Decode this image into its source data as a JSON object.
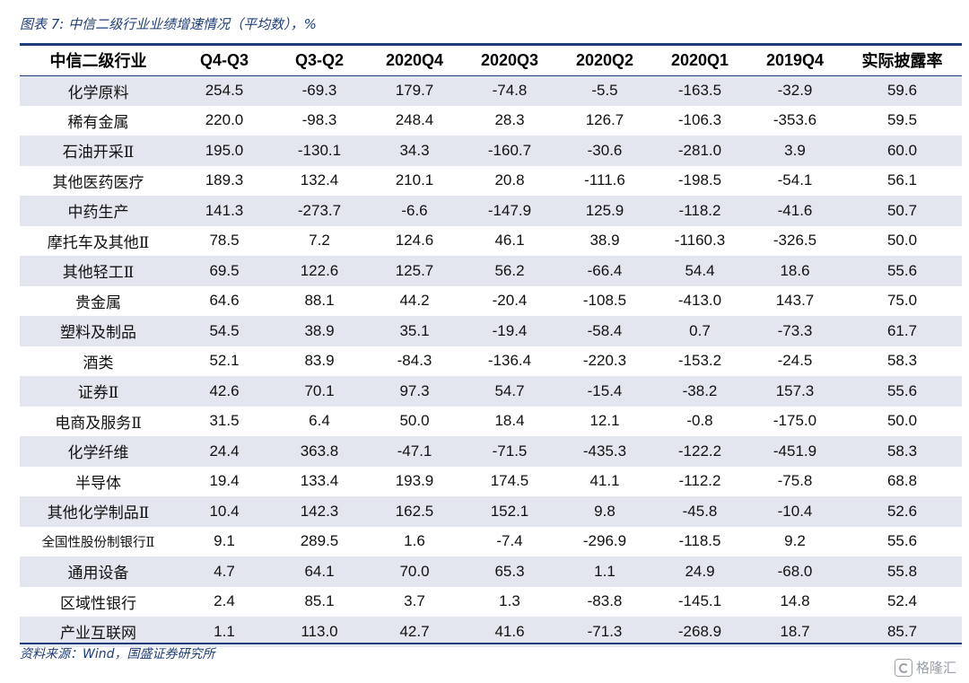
{
  "figure": {
    "title": "图表 7:  中信二级行业业绩增速情况（平均数），%",
    "source": "资料来源：Wind，国盛证券研究所",
    "watermark": "格隆汇",
    "accent_color": "#1f3d7a",
    "row_shade_color": "#e3e6ee"
  },
  "table": {
    "headers": [
      "中信二级行业",
      "Q4-Q3",
      "Q3-Q2",
      "2020Q4",
      "2020Q3",
      "2020Q2",
      "2020Q1",
      "2019Q4",
      "实际披露率"
    ],
    "rows": [
      [
        "化学原料",
        "254.5",
        "-69.3",
        "179.7",
        "-74.8",
        "-5.5",
        "-163.5",
        "-32.9",
        "59.6"
      ],
      [
        "稀有金属",
        "220.0",
        "-98.3",
        "248.4",
        "28.3",
        "126.7",
        "-106.3",
        "-353.6",
        "59.5"
      ],
      [
        "石油开采Ⅱ",
        "195.0",
        "-130.1",
        "34.3",
        "-160.7",
        "-30.6",
        "-281.0",
        "3.9",
        "60.0"
      ],
      [
        "其他医药医疗",
        "189.3",
        "132.4",
        "210.1",
        "20.8",
        "-111.6",
        "-198.5",
        "-54.1",
        "56.1"
      ],
      [
        "中药生产",
        "141.3",
        "-273.7",
        "-6.6",
        "-147.9",
        "125.9",
        "-118.2",
        "-41.6",
        "50.7"
      ],
      [
        "摩托车及其他Ⅱ",
        "78.5",
        "7.2",
        "124.6",
        "46.1",
        "38.9",
        "-1160.3",
        "-326.5",
        "50.0"
      ],
      [
        "其他轻工Ⅱ",
        "69.5",
        "122.6",
        "125.7",
        "56.2",
        "-66.4",
        "54.4",
        "18.6",
        "55.6"
      ],
      [
        "贵金属",
        "64.6",
        "88.1",
        "44.2",
        "-20.4",
        "-108.5",
        "-413.0",
        "143.7",
        "75.0"
      ],
      [
        "塑料及制品",
        "54.5",
        "38.9",
        "35.1",
        "-19.4",
        "-58.4",
        "0.7",
        "-73.3",
        "61.7"
      ],
      [
        "酒类",
        "52.1",
        "83.9",
        "-84.3",
        "-136.4",
        "-220.3",
        "-153.2",
        "-24.5",
        "58.3"
      ],
      [
        "证券Ⅱ",
        "42.6",
        "70.1",
        "97.3",
        "54.7",
        "-15.4",
        "-38.2",
        "157.3",
        "55.6"
      ],
      [
        "电商及服务Ⅱ",
        "31.5",
        "6.4",
        "50.0",
        "18.4",
        "12.1",
        "-0.8",
        "-175.0",
        "50.0"
      ],
      [
        "化学纤维",
        "24.4",
        "363.8",
        "-47.1",
        "-71.5",
        "-435.3",
        "-122.2",
        "-451.9",
        "58.3"
      ],
      [
        "半导体",
        "19.4",
        "133.4",
        "193.9",
        "174.5",
        "41.1",
        "-112.2",
        "-75.8",
        "68.8"
      ],
      [
        "其他化学制品Ⅱ",
        "10.4",
        "142.3",
        "162.5",
        "152.1",
        "9.8",
        "-45.8",
        "-10.4",
        "52.6"
      ],
      [
        "全国性股份制银行Ⅱ",
        "9.1",
        "289.5",
        "1.6",
        "-7.4",
        "-296.9",
        "-118.5",
        "9.2",
        "55.6"
      ],
      [
        "通用设备",
        "4.7",
        "64.1",
        "70.0",
        "65.3",
        "1.1",
        "24.9",
        "-68.0",
        "55.8"
      ],
      [
        "区域性银行",
        "2.4",
        "85.1",
        "3.7",
        "1.3",
        "-83.8",
        "-145.1",
        "14.8",
        "52.4"
      ],
      [
        "产业互联网",
        "1.1",
        "113.0",
        "42.7",
        "41.6",
        "-71.3",
        "-268.9",
        "18.7",
        "85.7"
      ]
    ]
  }
}
